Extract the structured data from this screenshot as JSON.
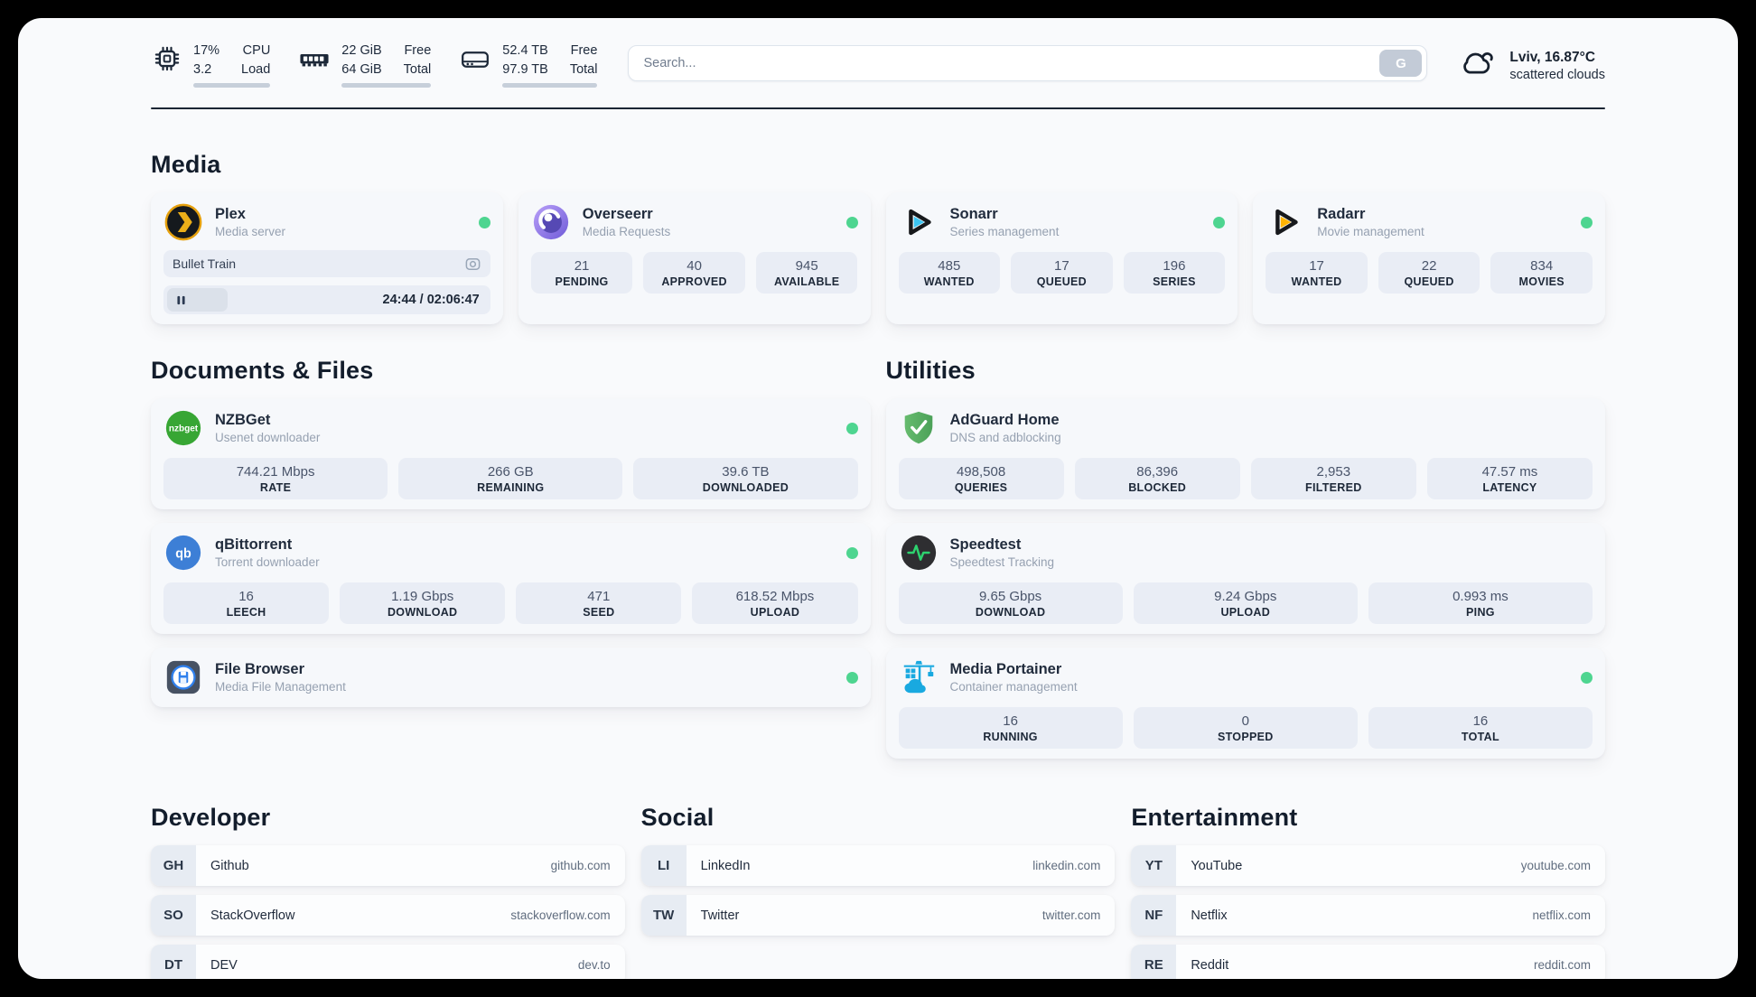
{
  "colors": {
    "status_online": "#4ed590",
    "divider": "#1b2534",
    "page_bg": "#f9fafc",
    "chip_bg": "#e9edf5"
  },
  "header": {
    "stats": [
      {
        "id": "cpu",
        "cells": [
          "17%",
          "CPU",
          "3.2",
          "Load"
        ],
        "progress": 17
      },
      {
        "id": "memory",
        "cells": [
          "22 GiB",
          "Free",
          "64 GiB",
          "Total"
        ],
        "progress": 66
      },
      {
        "id": "storage",
        "cells": [
          "52.4 TB",
          "Free",
          "97.9 TB",
          "Total"
        ],
        "progress": 46
      }
    ],
    "search": {
      "placeholder": "Search...",
      "engine_button": "G"
    },
    "weather": {
      "location": "Lviv, 16.87°C",
      "condition": "scattered clouds"
    }
  },
  "sections": {
    "media": {
      "title": "Media",
      "plex": {
        "name": "Plex",
        "subtitle": "Media server",
        "online": true,
        "state": "paused",
        "now_playing": "Bullet Train",
        "time": "24:44 / 02:06:47",
        "progress": 19.5
      },
      "overseerr": {
        "name": "Overseerr",
        "subtitle": "Media Requests",
        "online": true,
        "stats": [
          {
            "value": "21",
            "label": "PENDING"
          },
          {
            "value": "40",
            "label": "APPROVED"
          },
          {
            "value": "945",
            "label": "AVAILABLE"
          }
        ]
      },
      "sonarr": {
        "name": "Sonarr",
        "subtitle": "Series management",
        "online": true,
        "stats": [
          {
            "value": "485",
            "label": "WANTED"
          },
          {
            "value": "17",
            "label": "QUEUED"
          },
          {
            "value": "196",
            "label": "SERIES"
          }
        ]
      },
      "radarr": {
        "name": "Radarr",
        "subtitle": "Movie management",
        "online": true,
        "stats": [
          {
            "value": "17",
            "label": "WANTED"
          },
          {
            "value": "22",
            "label": "QUEUED"
          },
          {
            "value": "834",
            "label": "MOVIES"
          }
        ]
      }
    },
    "documents": {
      "title": "Documents & Files",
      "nzbget": {
        "name": "NZBGet",
        "subtitle": "Usenet downloader",
        "online": true,
        "stats": [
          {
            "value": "744.21 Mbps",
            "label": "RATE"
          },
          {
            "value": "266 GB",
            "label": "REMAINING"
          },
          {
            "value": "39.6 TB",
            "label": "DOWNLOADED"
          }
        ]
      },
      "qbittorrent": {
        "name": "qBittorrent",
        "subtitle": "Torrent downloader",
        "online": true,
        "stats": [
          {
            "value": "16",
            "label": "LEECH"
          },
          {
            "value": "1.19 Gbps",
            "label": "DOWNLOAD"
          },
          {
            "value": "471",
            "label": "SEED"
          },
          {
            "value": "618.52 Mbps",
            "label": "UPLOAD"
          }
        ]
      },
      "filebrowser": {
        "name": "File Browser",
        "subtitle": "Media File Management",
        "online": true
      }
    },
    "utilities": {
      "title": "Utilities",
      "adguard": {
        "name": "AdGuard Home",
        "subtitle": "DNS and adblocking",
        "online": false,
        "stats": [
          {
            "value": "498,508",
            "label": "QUERIES"
          },
          {
            "value": "86,396",
            "label": "BLOCKED"
          },
          {
            "value": "2,953",
            "label": "FILTERED"
          },
          {
            "value": "47.57 ms",
            "label": "LATENCY"
          }
        ]
      },
      "speedtest": {
        "name": "Speedtest",
        "subtitle": "Speedtest Tracking",
        "online": false,
        "stats": [
          {
            "value": "9.65 Gbps",
            "label": "DOWNLOAD"
          },
          {
            "value": "9.24 Gbps",
            "label": "UPLOAD"
          },
          {
            "value": "0.993 ms",
            "label": "PING"
          }
        ]
      },
      "portainer": {
        "name": "Media Portainer",
        "subtitle": "Container management",
        "online": true,
        "stats": [
          {
            "value": "16",
            "label": "RUNNING"
          },
          {
            "value": "0",
            "label": "STOPPED"
          },
          {
            "value": "16",
            "label": "TOTAL"
          }
        ]
      }
    },
    "links": {
      "developer": {
        "title": "Developer",
        "items": [
          {
            "abbr": "GH",
            "name": "Github",
            "url": "github.com"
          },
          {
            "abbr": "SO",
            "name": "StackOverflow",
            "url": "stackoverflow.com"
          },
          {
            "abbr": "DT",
            "name": "DEV",
            "url": "dev.to"
          }
        ]
      },
      "social": {
        "title": "Social",
        "items": [
          {
            "abbr": "LI",
            "name": "LinkedIn",
            "url": "linkedin.com"
          },
          {
            "abbr": "TW",
            "name": "Twitter",
            "url": "twitter.com"
          }
        ]
      },
      "entertainment": {
        "title": "Entertainment",
        "items": [
          {
            "abbr": "YT",
            "name": "YouTube",
            "url": "youtube.com"
          },
          {
            "abbr": "NF",
            "name": "Netflix",
            "url": "netflix.com"
          },
          {
            "abbr": "RE",
            "name": "Reddit",
            "url": "reddit.com"
          }
        ]
      }
    }
  }
}
